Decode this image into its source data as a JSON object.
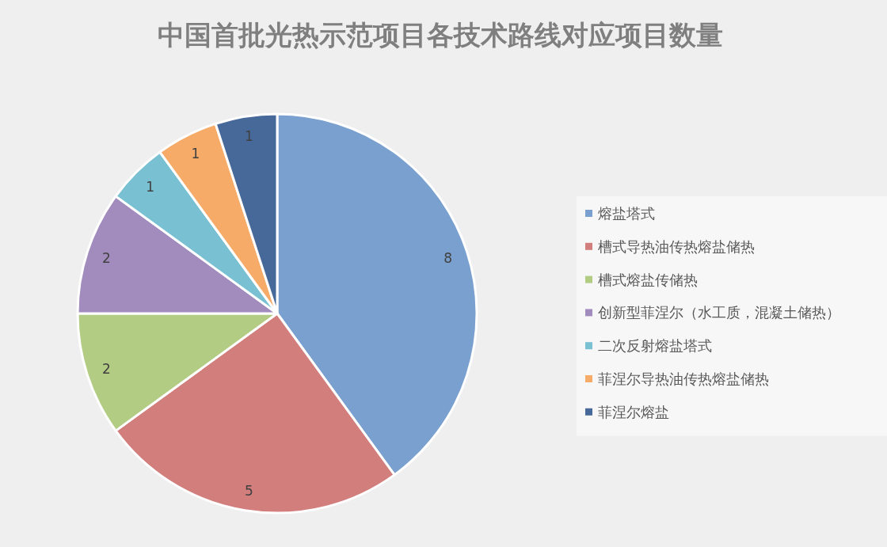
{
  "chart_data": {
    "type": "pie",
    "title": "中国首批光热示范项目各技术路线对应项目数量",
    "categories": [
      "熔盐塔式",
      "槽式导热油传热熔盐储热",
      "槽式熔盐传储热",
      "创新型菲涅尔（水工质，混凝土储热）",
      "二次反射熔盐塔式",
      "菲涅尔导热油传热熔盐储热",
      "菲涅尔熔盐"
    ],
    "values": [
      8,
      5,
      2,
      2,
      1,
      1,
      1
    ],
    "colors": [
      "#7aa0cf",
      "#d27e7c",
      "#b3cc84",
      "#a28bbd",
      "#78c0d2",
      "#f6ac68",
      "#46699a"
    ],
    "data_labels": true,
    "legend": "right"
  }
}
